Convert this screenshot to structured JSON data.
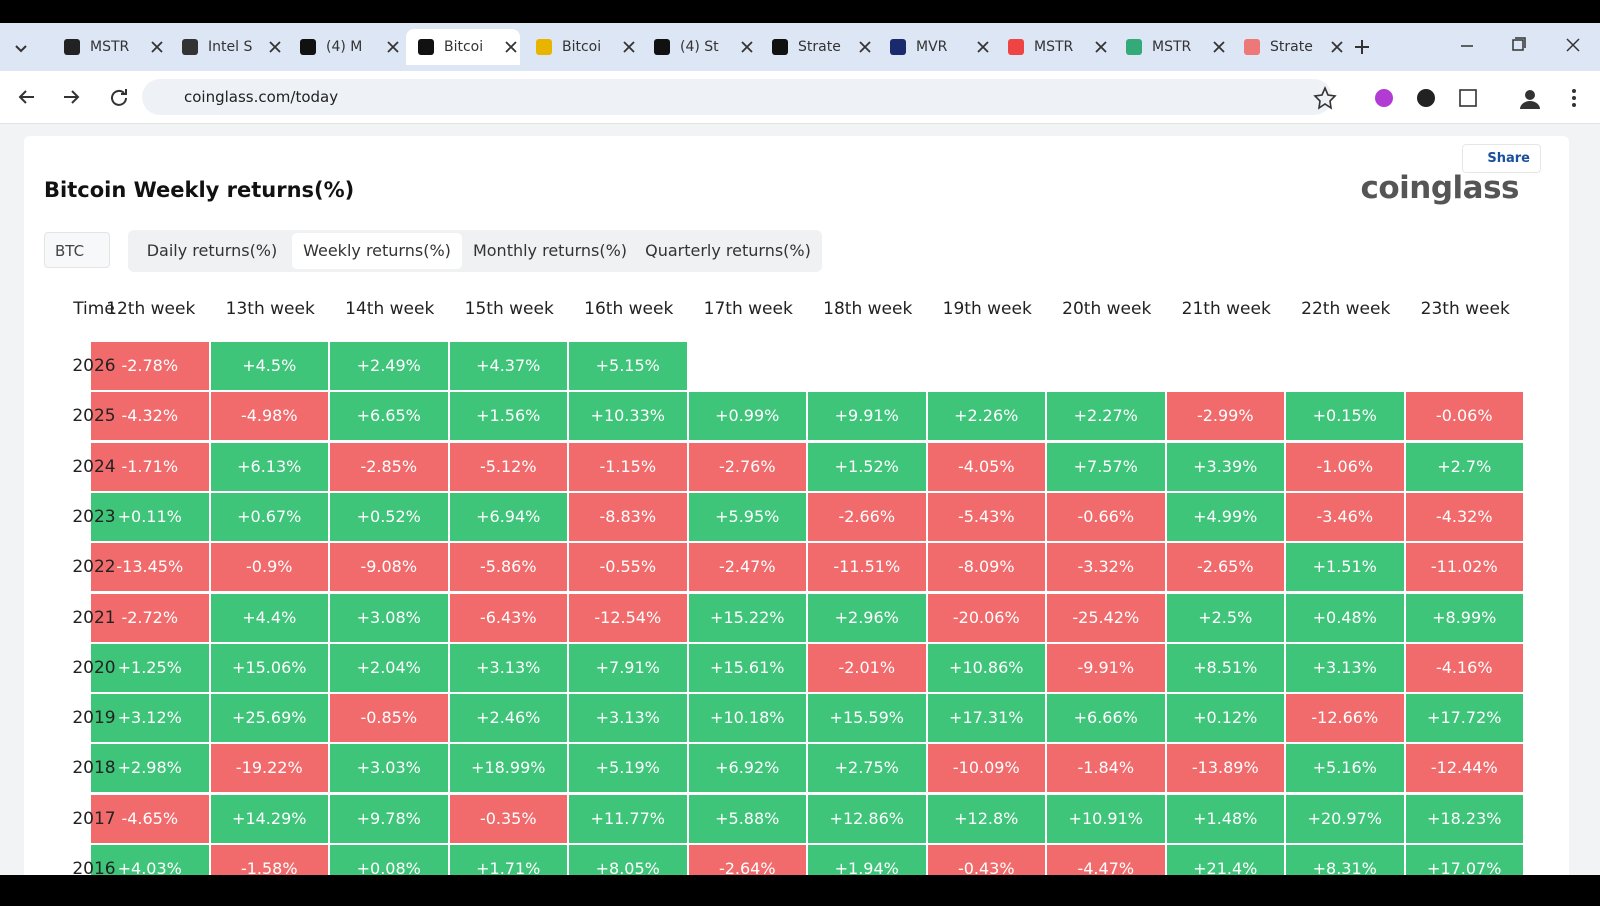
{
  "browser": {
    "tabs": [
      "MSTR",
      "Intel S",
      "(4) M",
      "Bitcoi",
      "Bitcoi",
      "(4) St",
      "Strate",
      "MVR",
      "MSTR",
      "MSTR",
      "Strate"
    ],
    "active_tab": 3,
    "url": "coinglass.com/today"
  },
  "header": {
    "share": "Share",
    "title": "Bitcoin Weekly returns(%)",
    "logo": "coinglass"
  },
  "controls": {
    "coin": "BTC",
    "tabs": [
      "Daily returns(%)",
      "Weekly returns(%)",
      "Monthly returns(%)",
      "Quarterly returns(%)"
    ],
    "active_tab": 1
  },
  "table": {
    "columns": [
      "Time",
      "12th week",
      "13th week",
      "14th week",
      "15th week",
      "16th week",
      "17th week",
      "18th week",
      "19th week",
      "20th week",
      "21th week",
      "22th week",
      "23th week"
    ],
    "rows": [
      [
        "2026",
        "-2.78%",
        "+4.5%",
        "+2.49%",
        "+4.37%",
        "+5.15%",
        null,
        null,
        null,
        null,
        null,
        null,
        null
      ],
      [
        "2025",
        "-4.32%",
        "-4.98%",
        "+6.65%",
        "+1.56%",
        "+10.33%",
        "+0.99%",
        "+9.91%",
        "+2.26%",
        "+2.27%",
        "-2.99%",
        "+0.15%",
        "-0.06%"
      ],
      [
        "2024",
        "-1.71%",
        "+6.13%",
        "-2.85%",
        "-5.12%",
        "-1.15%",
        "-2.76%",
        "+1.52%",
        "-4.05%",
        "+7.57%",
        "+3.39%",
        "-1.06%",
        "+2.7%"
      ],
      [
        "2023",
        "+0.11%",
        "+0.67%",
        "+0.52%",
        "+6.94%",
        "-8.83%",
        "+5.95%",
        "-2.66%",
        "-5.43%",
        "-0.66%",
        "+4.99%",
        "-3.46%",
        "-4.32%"
      ],
      [
        "2022",
        "-13.45%",
        "-0.9%",
        "-9.08%",
        "-5.86%",
        "-0.55%",
        "-2.47%",
        "-11.51%",
        "-8.09%",
        "-3.32%",
        "-2.65%",
        "+1.51%",
        "-11.02%"
      ],
      [
        "2021",
        "-2.72%",
        "+4.4%",
        "+3.08%",
        "-6.43%",
        "-12.54%",
        "+15.22%",
        "+2.96%",
        "-20.06%",
        "-25.42%",
        "+2.5%",
        "+0.48%",
        "+8.99%"
      ],
      [
        "2020",
        "+1.25%",
        "+15.06%",
        "+2.04%",
        "+3.13%",
        "+7.91%",
        "+15.61%",
        "-2.01%",
        "+10.86%",
        "-9.91%",
        "+8.51%",
        "+3.13%",
        "-4.16%"
      ],
      [
        "2019",
        "+3.12%",
        "+25.69%",
        "-0.85%",
        "+2.46%",
        "+3.13%",
        "+10.18%",
        "+15.59%",
        "+17.31%",
        "+6.66%",
        "+0.12%",
        "-12.66%",
        "+17.72%"
      ],
      [
        "2018",
        "+2.98%",
        "-19.22%",
        "+3.03%",
        "+18.99%",
        "+5.19%",
        "+6.92%",
        "+2.75%",
        "-10.09%",
        "-1.84%",
        "-13.89%",
        "+5.16%",
        "-12.44%"
      ],
      [
        "2017",
        "-4.65%",
        "+14.29%",
        "+9.78%",
        "-0.35%",
        "+11.77%",
        "+5.88%",
        "+12.86%",
        "+12.8%",
        "+10.91%",
        "+1.48%",
        "+20.97%",
        "+18.23%"
      ],
      [
        "2016",
        "+4.03%",
        "-1.58%",
        "+0.08%",
        "+1.71%",
        "+8.05%",
        "-2.64%",
        "+1.94%",
        "-0.43%",
        "-4.47%",
        "+21.4%",
        "+8.31%",
        "+17.07%"
      ]
    ]
  }
}
